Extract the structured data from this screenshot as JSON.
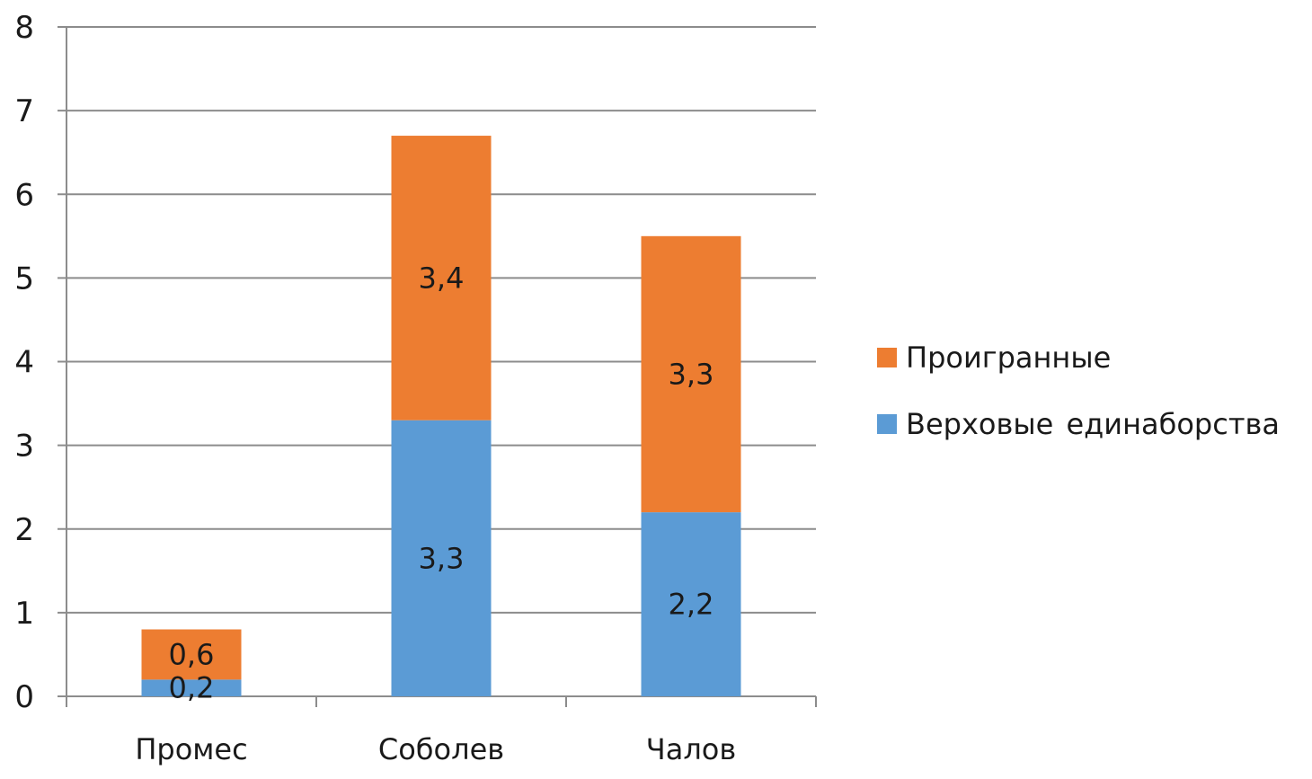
{
  "chart_data": {
    "type": "bar",
    "stacked": true,
    "categories": [
      "Промес",
      "Соболев",
      "Чалов"
    ],
    "series": [
      {
        "name": "Верховые единаборства",
        "values": [
          0.2,
          3.3,
          2.2
        ],
        "labels": [
          "0,2",
          "3,3",
          "2,2"
        ],
        "color": "#5B9BD5"
      },
      {
        "name": "Проигранные",
        "values": [
          0.6,
          3.4,
          3.3
        ],
        "labels": [
          "0,6",
          "3,4",
          "3,3"
        ],
        "color": "#ED7D31"
      }
    ],
    "title": "",
    "xlabel": "",
    "ylabel": "",
    "ylim": [
      0,
      8
    ],
    "yticks": [
      "0",
      "1",
      "2",
      "3",
      "4",
      "5",
      "6",
      "7",
      "8"
    ],
    "grid": true,
    "legend_position": "right",
    "legend": [
      {
        "label": "Проигранные",
        "color": "#ED7D31"
      },
      {
        "label": "Верховые единаборства",
        "color": "#5B9BD5"
      }
    ]
  }
}
